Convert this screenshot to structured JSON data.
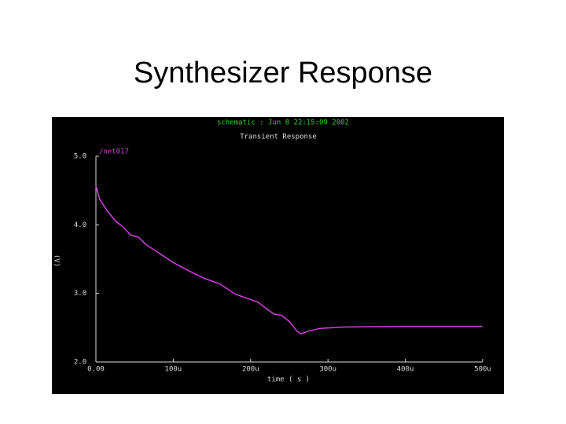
{
  "slide_title": "Synthesizer Response",
  "chart_data": {
    "type": "line",
    "title": "Transient Response",
    "subtitle": "schematic : Jun 8 22:15:09 2002",
    "x_label": "time ( s )",
    "y_label": "(V)",
    "x": [
      0,
      5e-06,
      1.5e-05,
      2.5e-05,
      3.5e-05,
      4.5e-05,
      5.5e-05,
      6.5e-05,
      8e-05,
      0.0001,
      0.00012,
      0.00014,
      0.00016,
      0.00018,
      0.000195,
      0.00021,
      0.00022,
      0.00023,
      0.00024,
      0.00025,
      0.00026,
      0.000265,
      0.000275,
      0.00029,
      0.00032,
      0.0004,
      0.0005
    ],
    "series": [
      {
        "name": "/net017",
        "color": "#d040e0",
        "values": [
          4.57,
          4.37,
          4.2,
          4.06,
          3.97,
          3.85,
          3.82,
          3.71,
          3.6,
          3.45,
          3.33,
          3.22,
          3.14,
          2.99,
          2.93,
          2.87,
          2.78,
          2.7,
          2.68,
          2.59,
          2.45,
          2.41,
          2.45,
          2.49,
          2.51,
          2.52,
          2.52
        ]
      }
    ],
    "xlim": [
      0,
      0.0005
    ],
    "xticks": [
      {
        "value": 0,
        "label": "0.00"
      },
      {
        "value": 0.0001,
        "label": "100u"
      },
      {
        "value": 0.0002,
        "label": "200u"
      },
      {
        "value": 0.0003,
        "label": "300u"
      },
      {
        "value": 0.0004,
        "label": "400u"
      },
      {
        "value": 0.0005,
        "label": "500u"
      }
    ],
    "ylim": [
      2,
      5
    ],
    "yticks": [
      {
        "value": 2,
        "label": "2.0"
      },
      {
        "value": 3,
        "label": "3.0"
      },
      {
        "value": 4,
        "label": "4.0"
      },
      {
        "value": 5,
        "label": "5.0"
      }
    ],
    "grid": false
  }
}
